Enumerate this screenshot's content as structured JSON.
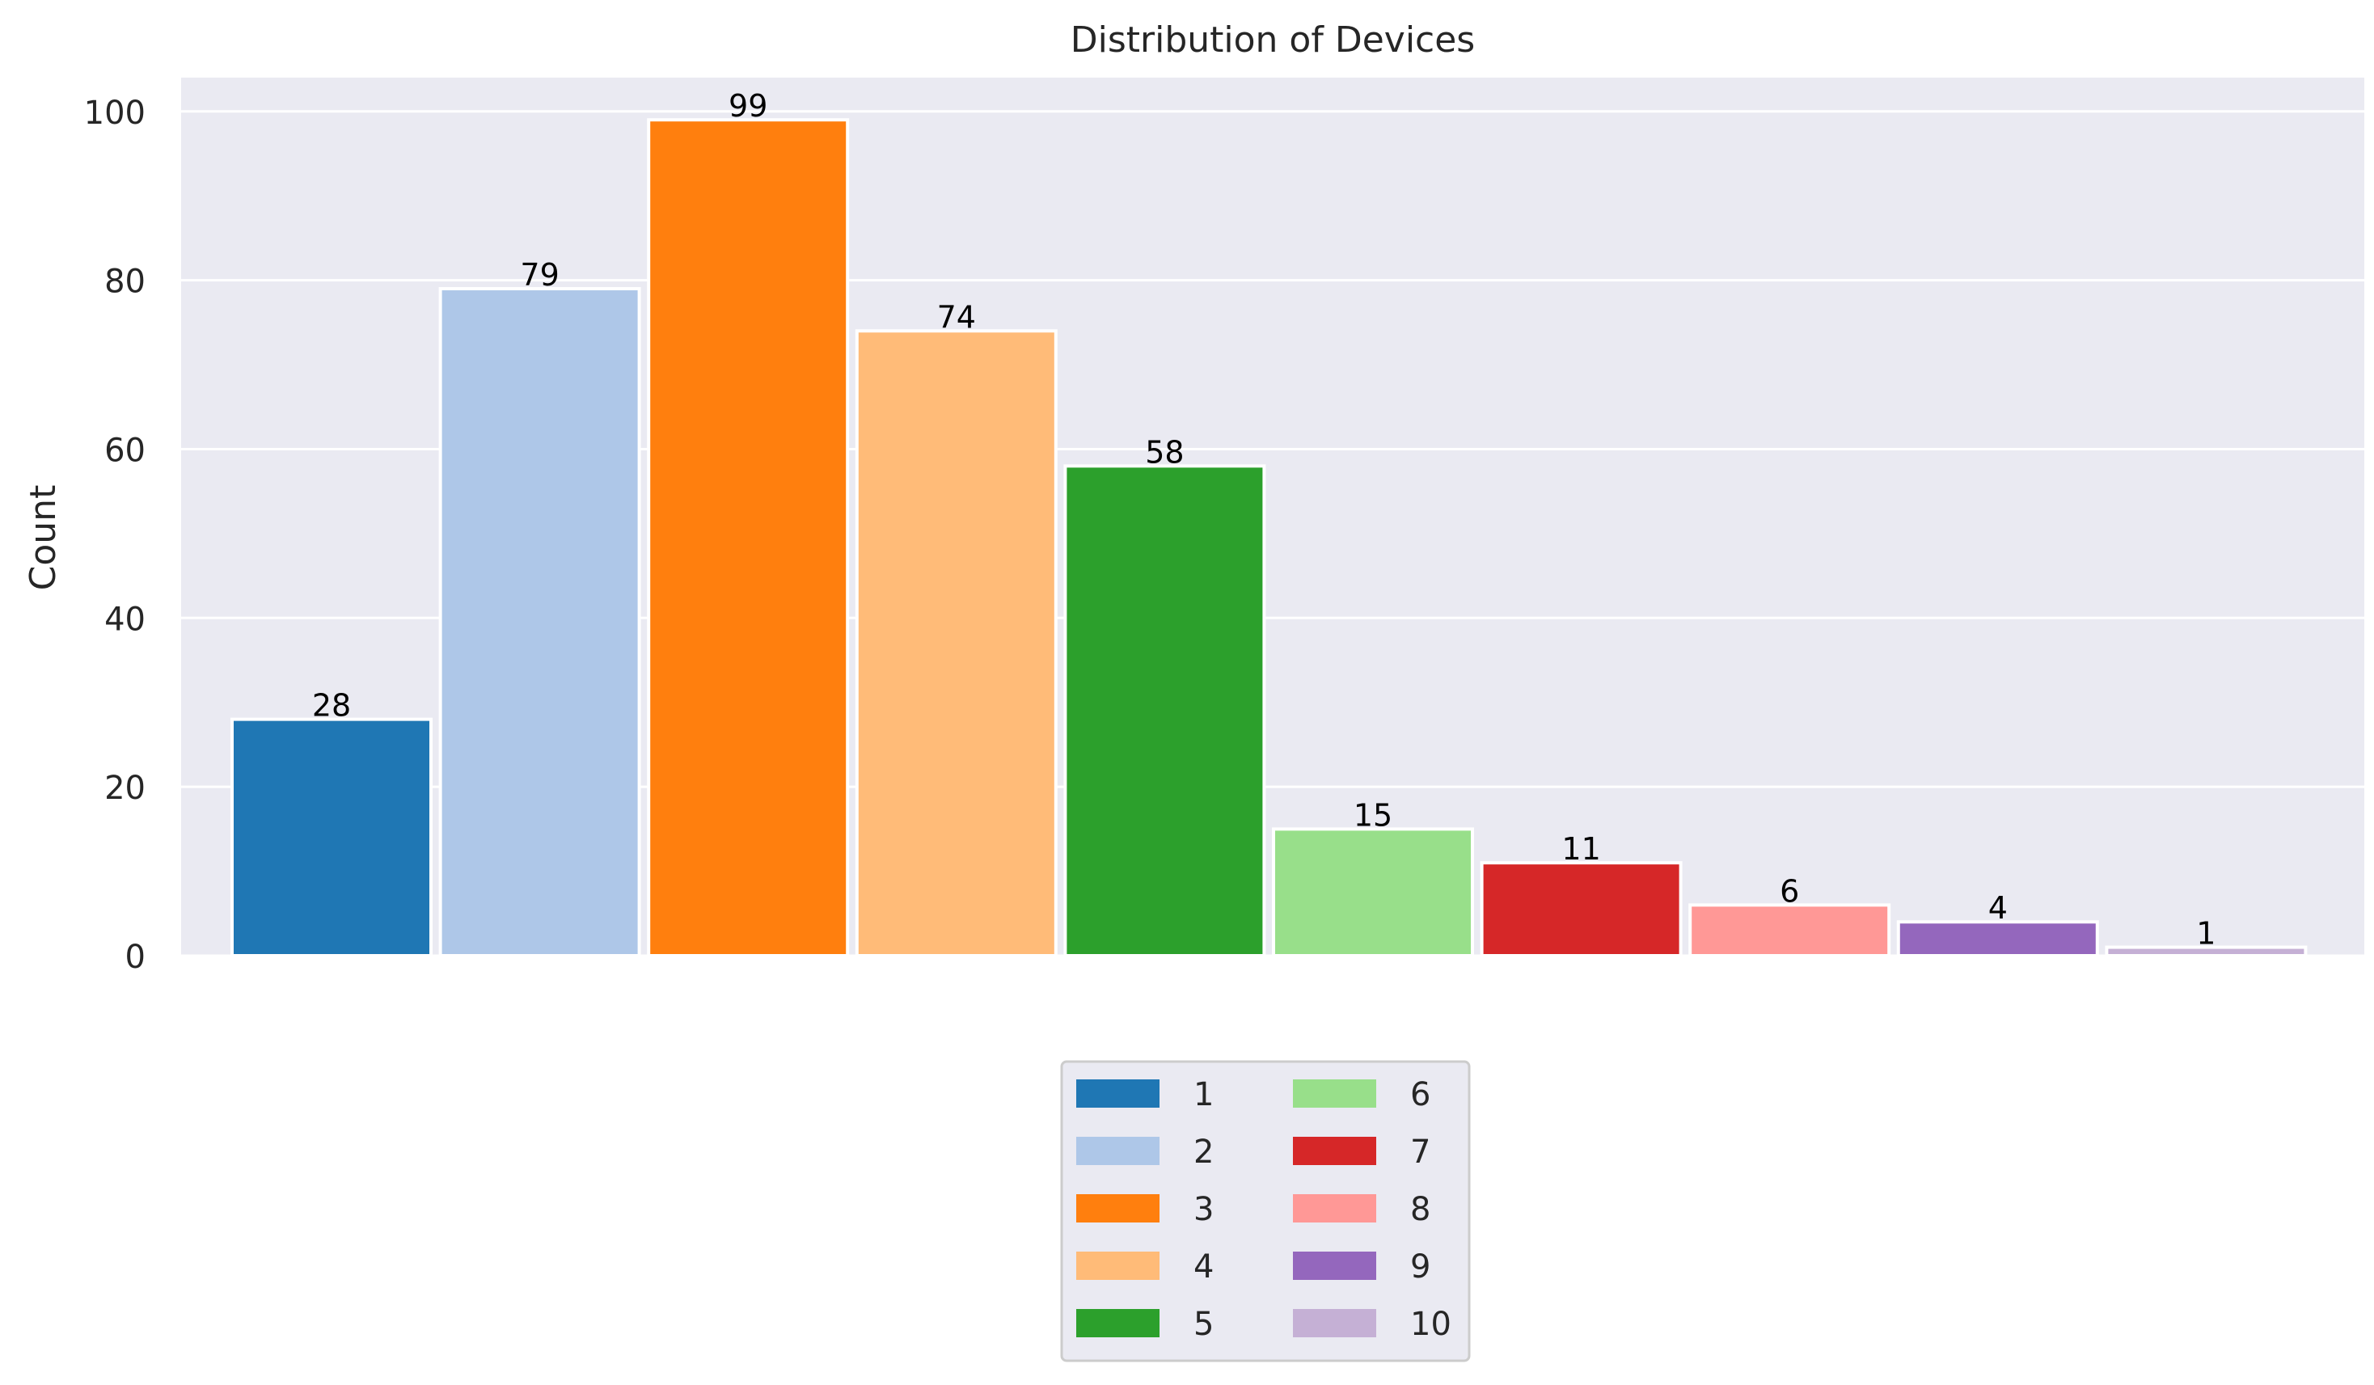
{
  "chart_data": {
    "type": "bar",
    "title": "Distribution of Devices",
    "xlabel": "",
    "ylabel": "Count",
    "categories": [
      "1",
      "2",
      "3",
      "4",
      "5",
      "6",
      "7",
      "8",
      "9",
      "10"
    ],
    "values": [
      28,
      79,
      99,
      74,
      58,
      15,
      11,
      6,
      4,
      1
    ],
    "colors": [
      "#1f77b4",
      "#aec7e8",
      "#ff7f0e",
      "#ffbb78",
      "#2ca02c",
      "#98df8a",
      "#d62728",
      "#ff9896",
      "#9467bd",
      "#c5b0d5"
    ],
    "ylim": [
      0,
      104
    ],
    "yticks": [
      0,
      20,
      40,
      60,
      80,
      100
    ],
    "grid": true,
    "legend": {
      "placement": "bottom-center",
      "columns": 2
    },
    "background": "#eaeaf2"
  }
}
